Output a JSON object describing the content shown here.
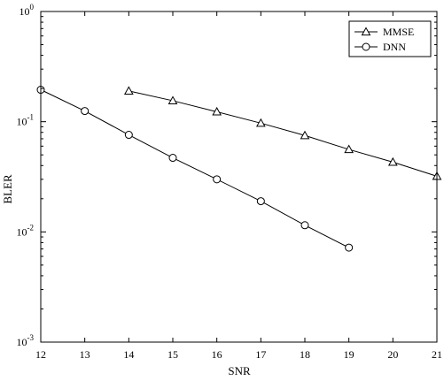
{
  "chart_data": {
    "type": "line",
    "title": "",
    "xlabel": "SNR",
    "ylabel": "BLER",
    "xlim": [
      12,
      21
    ],
    "ylim": [
      0.001,
      1
    ],
    "yscale": "log",
    "grid": false,
    "legend_position": "top-right",
    "x_ticks": [
      "12",
      "13",
      "14",
      "15",
      "16",
      "17",
      "18",
      "19",
      "20",
      "21"
    ],
    "y_ticks": [
      {
        "base": "10",
        "exp": "-3"
      },
      {
        "base": "10",
        "exp": "-2"
      },
      {
        "base": "10",
        "exp": "-1"
      },
      {
        "base": "10",
        "exp": "0"
      }
    ],
    "series": [
      {
        "name": "MMSE",
        "marker": "triangle",
        "x": [
          14,
          15,
          16,
          17,
          18,
          19,
          20,
          21
        ],
        "y": [
          0.19,
          0.155,
          0.123,
          0.097,
          0.075,
          0.056,
          0.043,
          0.032
        ]
      },
      {
        "name": "DNN",
        "marker": "circle",
        "x": [
          12,
          13,
          14,
          15,
          16,
          17,
          18,
          19
        ],
        "y": [
          0.195,
          0.125,
          0.076,
          0.047,
          0.03,
          0.019,
          0.0115,
          0.0072
        ]
      }
    ]
  }
}
